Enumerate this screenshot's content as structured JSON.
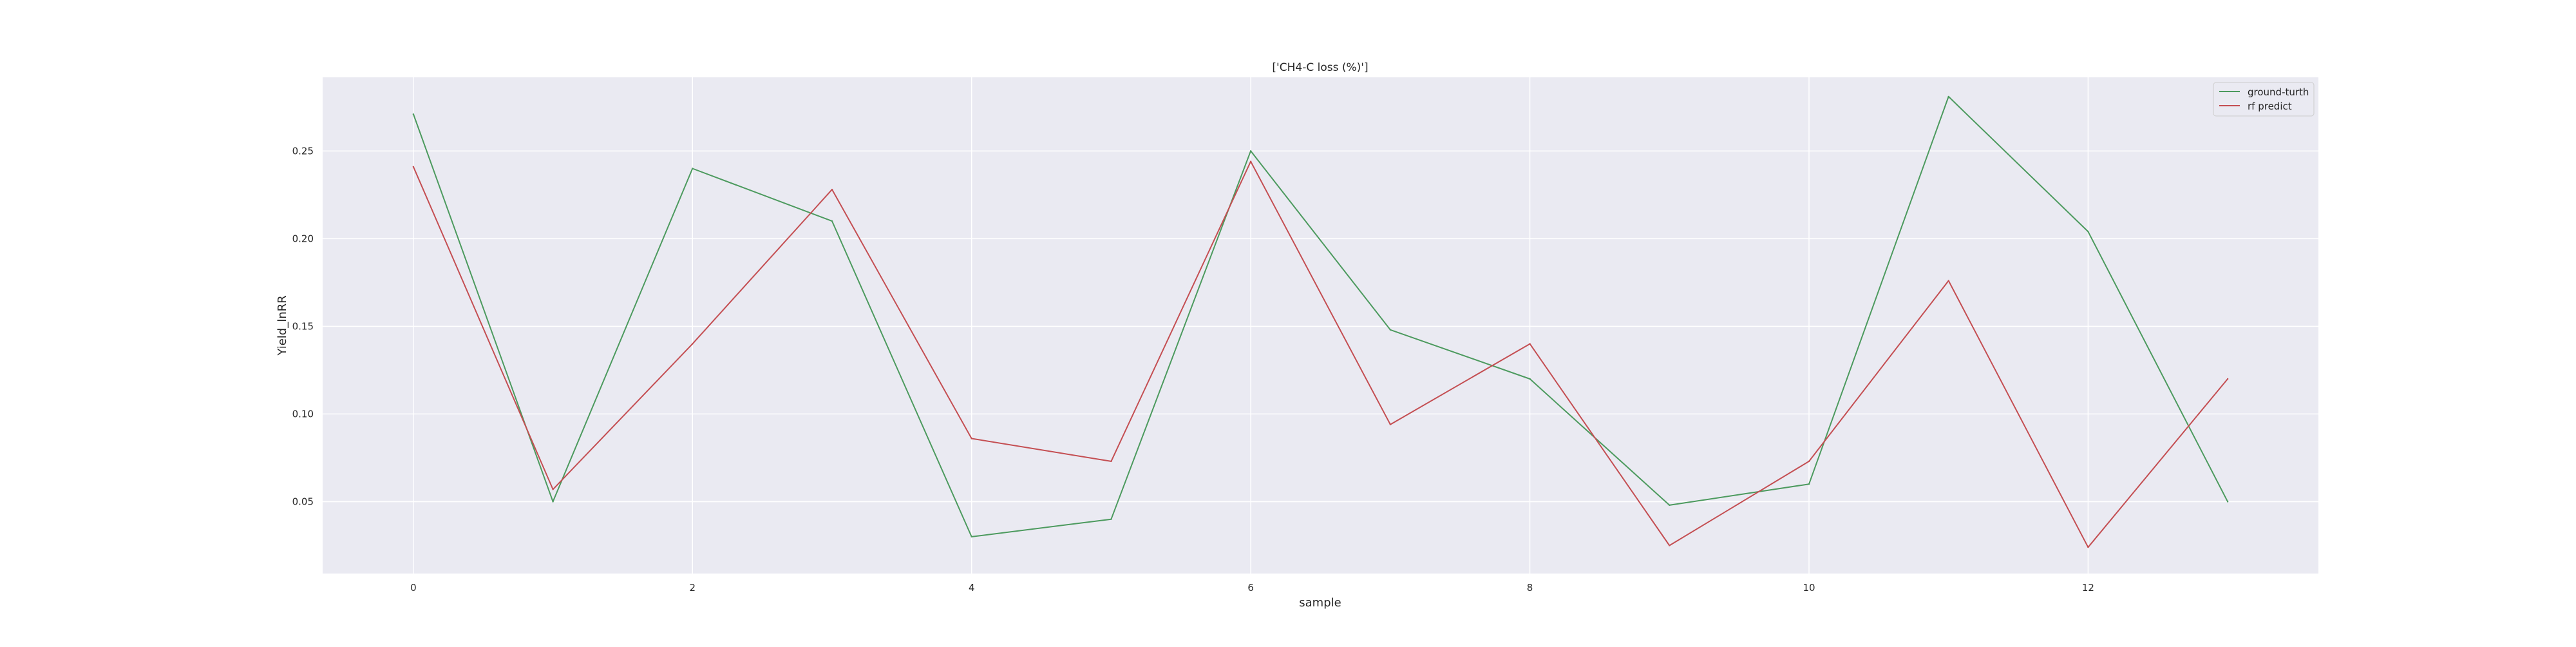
{
  "chart_data": {
    "type": "line",
    "title": "['CH4-C loss (%)']",
    "xlabel": "sample",
    "ylabel": "Yield_lnRR",
    "x": [
      0,
      1,
      2,
      3,
      4,
      5,
      6,
      7,
      8,
      9,
      10,
      11,
      12,
      13
    ],
    "xlim": [
      -0.65,
      13.65
    ],
    "ylim": [
      0.009,
      0.292
    ],
    "xticks": [
      0,
      2,
      4,
      6,
      8,
      10,
      12
    ],
    "xtick_labels": [
      "0",
      "2",
      "4",
      "6",
      "8",
      "10",
      "12"
    ],
    "yticks": [
      0.05,
      0.1,
      0.15,
      0.2,
      0.25
    ],
    "ytick_labels": [
      "0.05",
      "0.10",
      "0.15",
      "0.20",
      "0.25"
    ],
    "grid": true,
    "legend_position": "top-right",
    "series": [
      {
        "name": "ground-turth",
        "color": "#4c9a5e",
        "values": [
          0.271,
          0.05,
          0.24,
          0.21,
          0.03,
          0.04,
          0.25,
          0.148,
          0.12,
          0.048,
          0.06,
          0.281,
          0.204,
          0.05
        ]
      },
      {
        "name": "rf predict",
        "color": "#c44e52",
        "values": [
          0.241,
          0.057,
          0.14,
          0.228,
          0.086,
          0.073,
          0.244,
          0.094,
          0.14,
          0.025,
          0.073,
          0.176,
          0.024,
          0.12
        ]
      }
    ],
    "colors": {
      "plot_background": "#eaeaf2",
      "grid": "#ffffff",
      "text": "#262626"
    }
  }
}
